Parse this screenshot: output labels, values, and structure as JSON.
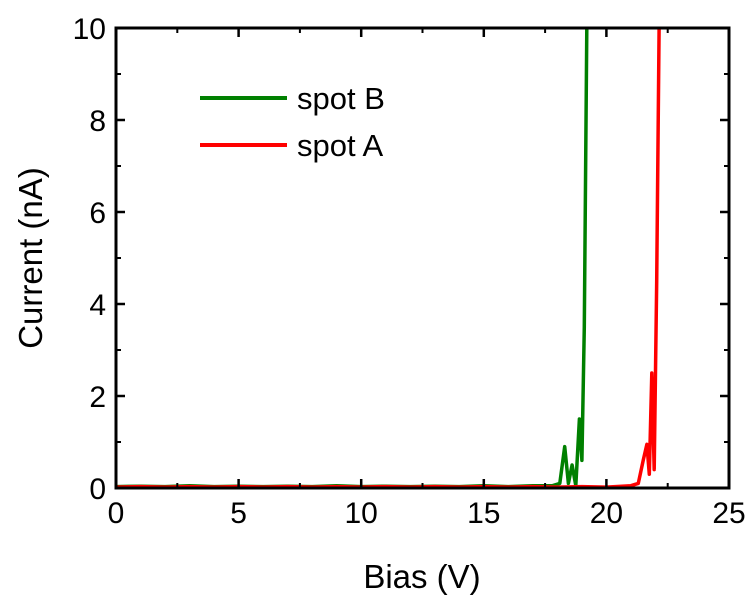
{
  "chart_data": {
    "type": "line",
    "xlabel": "Bias (V)",
    "ylabel": "Current (nA)",
    "xlim": [
      0,
      25
    ],
    "ylim": [
      0,
      10
    ],
    "x_ticks": [
      0,
      5,
      10,
      15,
      20,
      25
    ],
    "y_ticks": [
      0,
      2,
      4,
      6,
      8,
      10
    ],
    "grid": false,
    "legend_position": "top-left",
    "series": [
      {
        "name": "spot B",
        "color": "#008000",
        "x": [
          0,
          1,
          2,
          3,
          4,
          5,
          6,
          7,
          8,
          9,
          10,
          11,
          12,
          13,
          14,
          15,
          16,
          17,
          17.8,
          18.1,
          18.3,
          18.45,
          18.6,
          18.75,
          18.9,
          19.0,
          19.1,
          19.2
        ],
        "y": [
          0.03,
          0.04,
          0.03,
          0.05,
          0.03,
          0.04,
          0.03,
          0.04,
          0.03,
          0.05,
          0.03,
          0.04,
          0.03,
          0.04,
          0.03,
          0.05,
          0.03,
          0.05,
          0.05,
          0.1,
          0.9,
          0.1,
          0.5,
          0.05,
          1.5,
          0.6,
          3.5,
          10
        ]
      },
      {
        "name": "spot A",
        "color": "#ff0000",
        "x": [
          0,
          1,
          2,
          3,
          4,
          5,
          6,
          7,
          8,
          9,
          10,
          11,
          12,
          13,
          14,
          15,
          16,
          17,
          18,
          19,
          20,
          21.0,
          21.3,
          21.5,
          21.65,
          21.75,
          21.85,
          21.95,
          22.05,
          22.15
        ],
        "y": [
          0.02,
          0.03,
          0.02,
          0.03,
          0.02,
          0.03,
          0.02,
          0.03,
          0.02,
          0.03,
          0.02,
          0.03,
          0.02,
          0.03,
          0.02,
          0.03,
          0.02,
          0.03,
          0.02,
          0.03,
          0.02,
          0.05,
          0.1,
          0.6,
          0.95,
          0.3,
          2.5,
          0.4,
          4.5,
          10
        ]
      }
    ]
  }
}
